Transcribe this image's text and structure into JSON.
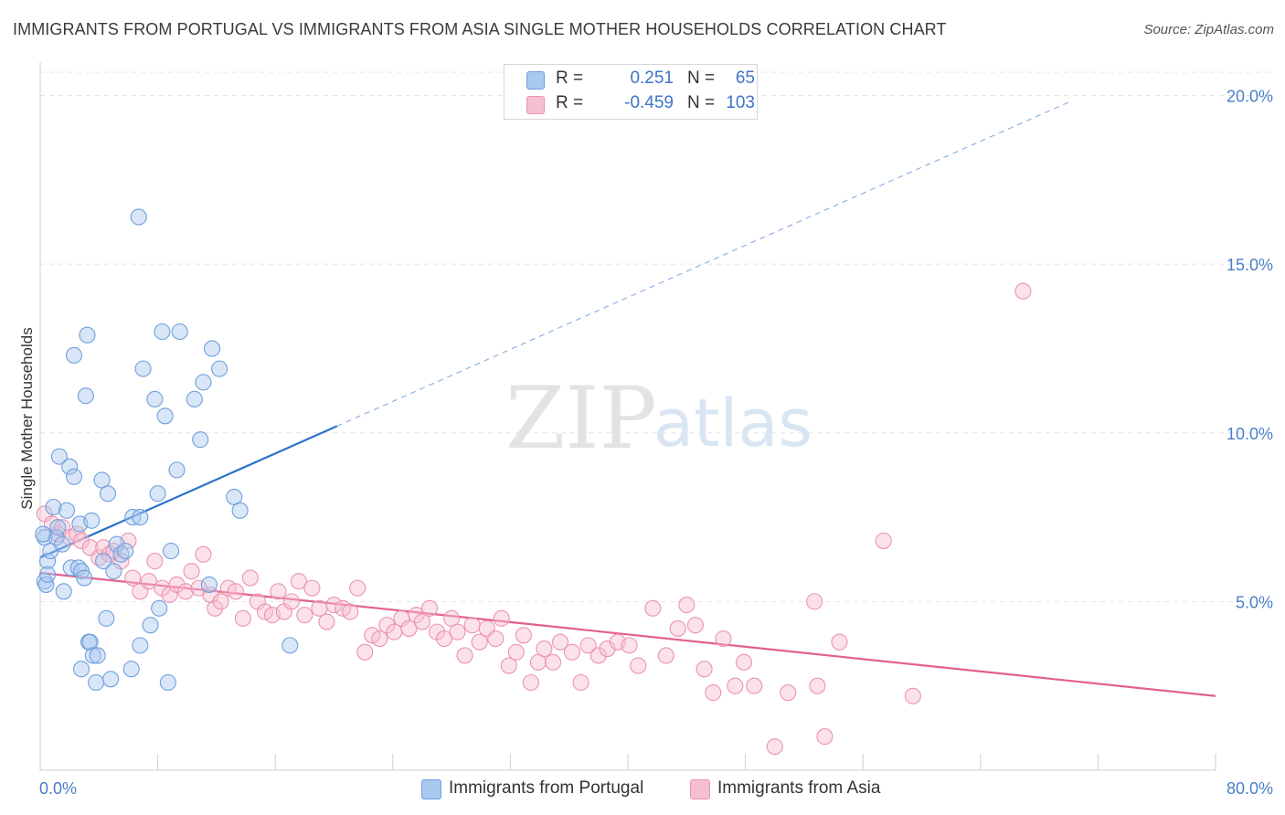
{
  "title": "IMMIGRANTS FROM PORTUGAL VS IMMIGRANTS FROM ASIA SINGLE MOTHER HOUSEHOLDS CORRELATION CHART",
  "source": "Source: ZipAtlas.com",
  "watermark": {
    "zip": "ZIP",
    "atlas": "atlas"
  },
  "legend": {
    "rows": [
      {
        "r_label": "R =",
        "r_value": "0.251",
        "n_label": "N =",
        "n_value": "65"
      },
      {
        "r_label": "R =",
        "r_value": "-0.459",
        "n_label": "N =",
        "n_value": "103"
      }
    ]
  },
  "bottom_legend": [
    "Immigrants from Portugal",
    "Immigrants from Asia"
  ],
  "chart_data": {
    "type": "scatter",
    "title": "IMMIGRANTS FROM PORTUGAL VS IMMIGRANTS FROM ASIA SINGLE MOTHER HOUSEHOLDS CORRELATION CHART",
    "xlabel": "",
    "ylabel": "Single Mother Households",
    "xlim": [
      0,
      80
    ],
    "ylim": [
      0,
      20.8
    ],
    "x_tick_labels": [
      "0.0%",
      "80.0%"
    ],
    "y_ticks": [
      5,
      10,
      15,
      20
    ],
    "y_tick_labels": [
      "5.0%",
      "10.0%",
      "15.0%",
      "20.0%"
    ],
    "grid": true,
    "legend_position": "top-center",
    "series": [
      {
        "name": "Immigrants from Portugal",
        "color": "#a9c8f0",
        "stroke": "#6f9fdc",
        "line_color": "#2b72c9",
        "R": 0.251,
        "N": 65,
        "trend": {
          "x0": 0,
          "y0": 6.3,
          "x1": 20.2,
          "y1": 10.2,
          "dash_to_x": 70.0,
          "dash_to_y": 19.8
        },
        "points": [
          [
            0.3,
            6.9
          ],
          [
            0.3,
            5.6
          ],
          [
            0.4,
            5.5
          ],
          [
            0.5,
            6.2
          ],
          [
            0.5,
            5.8
          ],
          [
            0.7,
            6.5
          ],
          [
            0.9,
            7.8
          ],
          [
            1.1,
            6.9
          ],
          [
            1.2,
            7.2
          ],
          [
            1.3,
            9.3
          ],
          [
            1.5,
            6.7
          ],
          [
            1.6,
            5.3
          ],
          [
            1.8,
            7.7
          ],
          [
            2.0,
            9.0
          ],
          [
            2.1,
            6.0
          ],
          [
            2.3,
            8.7
          ],
          [
            2.3,
            12.3
          ],
          [
            2.6,
            6.0
          ],
          [
            2.7,
            7.3
          ],
          [
            2.8,
            5.9
          ],
          [
            2.8,
            3.0
          ],
          [
            3.0,
            5.7
          ],
          [
            3.1,
            11.1
          ],
          [
            3.2,
            12.9
          ],
          [
            3.3,
            3.8
          ],
          [
            3.4,
            3.8
          ],
          [
            3.5,
            7.4
          ],
          [
            3.6,
            3.4
          ],
          [
            3.8,
            2.6
          ],
          [
            3.9,
            3.4
          ],
          [
            4.2,
            8.6
          ],
          [
            4.3,
            6.2
          ],
          [
            4.5,
            4.5
          ],
          [
            4.6,
            8.2
          ],
          [
            4.8,
            2.7
          ],
          [
            5.0,
            5.9
          ],
          [
            5.2,
            6.7
          ],
          [
            5.5,
            6.4
          ],
          [
            5.8,
            6.5
          ],
          [
            6.2,
            3.0
          ],
          [
            6.3,
            7.5
          ],
          [
            6.7,
            16.4
          ],
          [
            6.8,
            7.5
          ],
          [
            6.8,
            3.7
          ],
          [
            7.0,
            11.9
          ],
          [
            7.5,
            4.3
          ],
          [
            7.8,
            11.0
          ],
          [
            8.0,
            8.2
          ],
          [
            8.1,
            4.8
          ],
          [
            8.3,
            13.0
          ],
          [
            8.5,
            10.5
          ],
          [
            8.7,
            2.6
          ],
          [
            8.9,
            6.5
          ],
          [
            9.3,
            8.9
          ],
          [
            9.5,
            13.0
          ],
          [
            10.5,
            11.0
          ],
          [
            10.9,
            9.8
          ],
          [
            11.1,
            11.5
          ],
          [
            11.5,
            5.5
          ],
          [
            11.7,
            12.5
          ],
          [
            12.2,
            11.9
          ],
          [
            13.2,
            8.1
          ],
          [
            13.6,
            7.7
          ],
          [
            17.0,
            3.7
          ],
          [
            0.2,
            7.0
          ]
        ]
      },
      {
        "name": "Immigrants from Asia",
        "color": "#f6bfd0",
        "stroke": "#ec92b0",
        "line_color": "#e2608b",
        "R": -0.459,
        "N": 103,
        "trend": {
          "x0": 0,
          "y0": 5.85,
          "x1": 80,
          "y1": 2.2
        },
        "points": [
          [
            0.3,
            7.6
          ],
          [
            0.8,
            7.3
          ],
          [
            1.2,
            7.0
          ],
          [
            1.5,
            7.2
          ],
          [
            2.0,
            6.9
          ],
          [
            2.5,
            7.0
          ],
          [
            2.8,
            6.8
          ],
          [
            3.4,
            6.6
          ],
          [
            4.0,
            6.3
          ],
          [
            4.3,
            6.6
          ],
          [
            4.7,
            6.4
          ],
          [
            5.0,
            6.5
          ],
          [
            5.5,
            6.2
          ],
          [
            6.0,
            6.8
          ],
          [
            6.3,
            5.7
          ],
          [
            6.8,
            5.3
          ],
          [
            7.4,
            5.6
          ],
          [
            7.8,
            6.2
          ],
          [
            8.3,
            5.4
          ],
          [
            8.8,
            5.2
          ],
          [
            9.3,
            5.5
          ],
          [
            9.9,
            5.3
          ],
          [
            10.3,
            5.9
          ],
          [
            10.8,
            5.4
          ],
          [
            11.1,
            6.4
          ],
          [
            11.6,
            5.2
          ],
          [
            11.9,
            4.8
          ],
          [
            12.3,
            5.0
          ],
          [
            12.8,
            5.4
          ],
          [
            13.3,
            5.3
          ],
          [
            13.8,
            4.5
          ],
          [
            14.3,
            5.7
          ],
          [
            14.8,
            5.0
          ],
          [
            15.3,
            4.7
          ],
          [
            15.8,
            4.6
          ],
          [
            16.2,
            5.3
          ],
          [
            16.6,
            4.7
          ],
          [
            17.1,
            5.0
          ],
          [
            17.6,
            5.6
          ],
          [
            18.0,
            4.6
          ],
          [
            18.5,
            5.4
          ],
          [
            19.0,
            4.8
          ],
          [
            19.5,
            4.4
          ],
          [
            20.0,
            4.9
          ],
          [
            20.6,
            4.8
          ],
          [
            21.1,
            4.7
          ],
          [
            21.6,
            5.4
          ],
          [
            22.1,
            3.5
          ],
          [
            22.6,
            4.0
          ],
          [
            23.1,
            3.9
          ],
          [
            23.6,
            4.3
          ],
          [
            24.1,
            4.1
          ],
          [
            24.6,
            4.5
          ],
          [
            25.1,
            4.2
          ],
          [
            25.6,
            4.6
          ],
          [
            26.0,
            4.4
          ],
          [
            26.5,
            4.8
          ],
          [
            27.0,
            4.1
          ],
          [
            27.5,
            3.9
          ],
          [
            28.0,
            4.5
          ],
          [
            28.4,
            4.1
          ],
          [
            28.9,
            3.4
          ],
          [
            29.4,
            4.3
          ],
          [
            29.9,
            3.8
          ],
          [
            30.4,
            4.2
          ],
          [
            31.0,
            3.9
          ],
          [
            31.4,
            4.5
          ],
          [
            31.9,
            3.1
          ],
          [
            32.4,
            3.5
          ],
          [
            32.9,
            4.0
          ],
          [
            33.4,
            2.6
          ],
          [
            33.9,
            3.2
          ],
          [
            34.3,
            3.6
          ],
          [
            34.9,
            3.2
          ],
          [
            35.4,
            3.8
          ],
          [
            36.2,
            3.5
          ],
          [
            36.8,
            2.6
          ],
          [
            37.3,
            3.7
          ],
          [
            38.0,
            3.4
          ],
          [
            38.6,
            3.6
          ],
          [
            39.3,
            3.8
          ],
          [
            40.1,
            3.7
          ],
          [
            40.7,
            3.1
          ],
          [
            41.7,
            4.8
          ],
          [
            42.6,
            3.4
          ],
          [
            43.4,
            4.2
          ],
          [
            44.0,
            4.9
          ],
          [
            44.6,
            4.3
          ],
          [
            45.2,
            3.0
          ],
          [
            45.8,
            2.3
          ],
          [
            46.5,
            3.9
          ],
          [
            47.3,
            2.5
          ],
          [
            47.9,
            3.2
          ],
          [
            48.6,
            2.5
          ],
          [
            50.0,
            0.7
          ],
          [
            50.9,
            2.3
          ],
          [
            52.7,
            5.0
          ],
          [
            52.9,
            2.5
          ],
          [
            53.4,
            1.0
          ],
          [
            54.4,
            3.8
          ],
          [
            57.4,
            6.8
          ],
          [
            59.4,
            2.2
          ],
          [
            66.9,
            14.2
          ]
        ]
      }
    ]
  }
}
